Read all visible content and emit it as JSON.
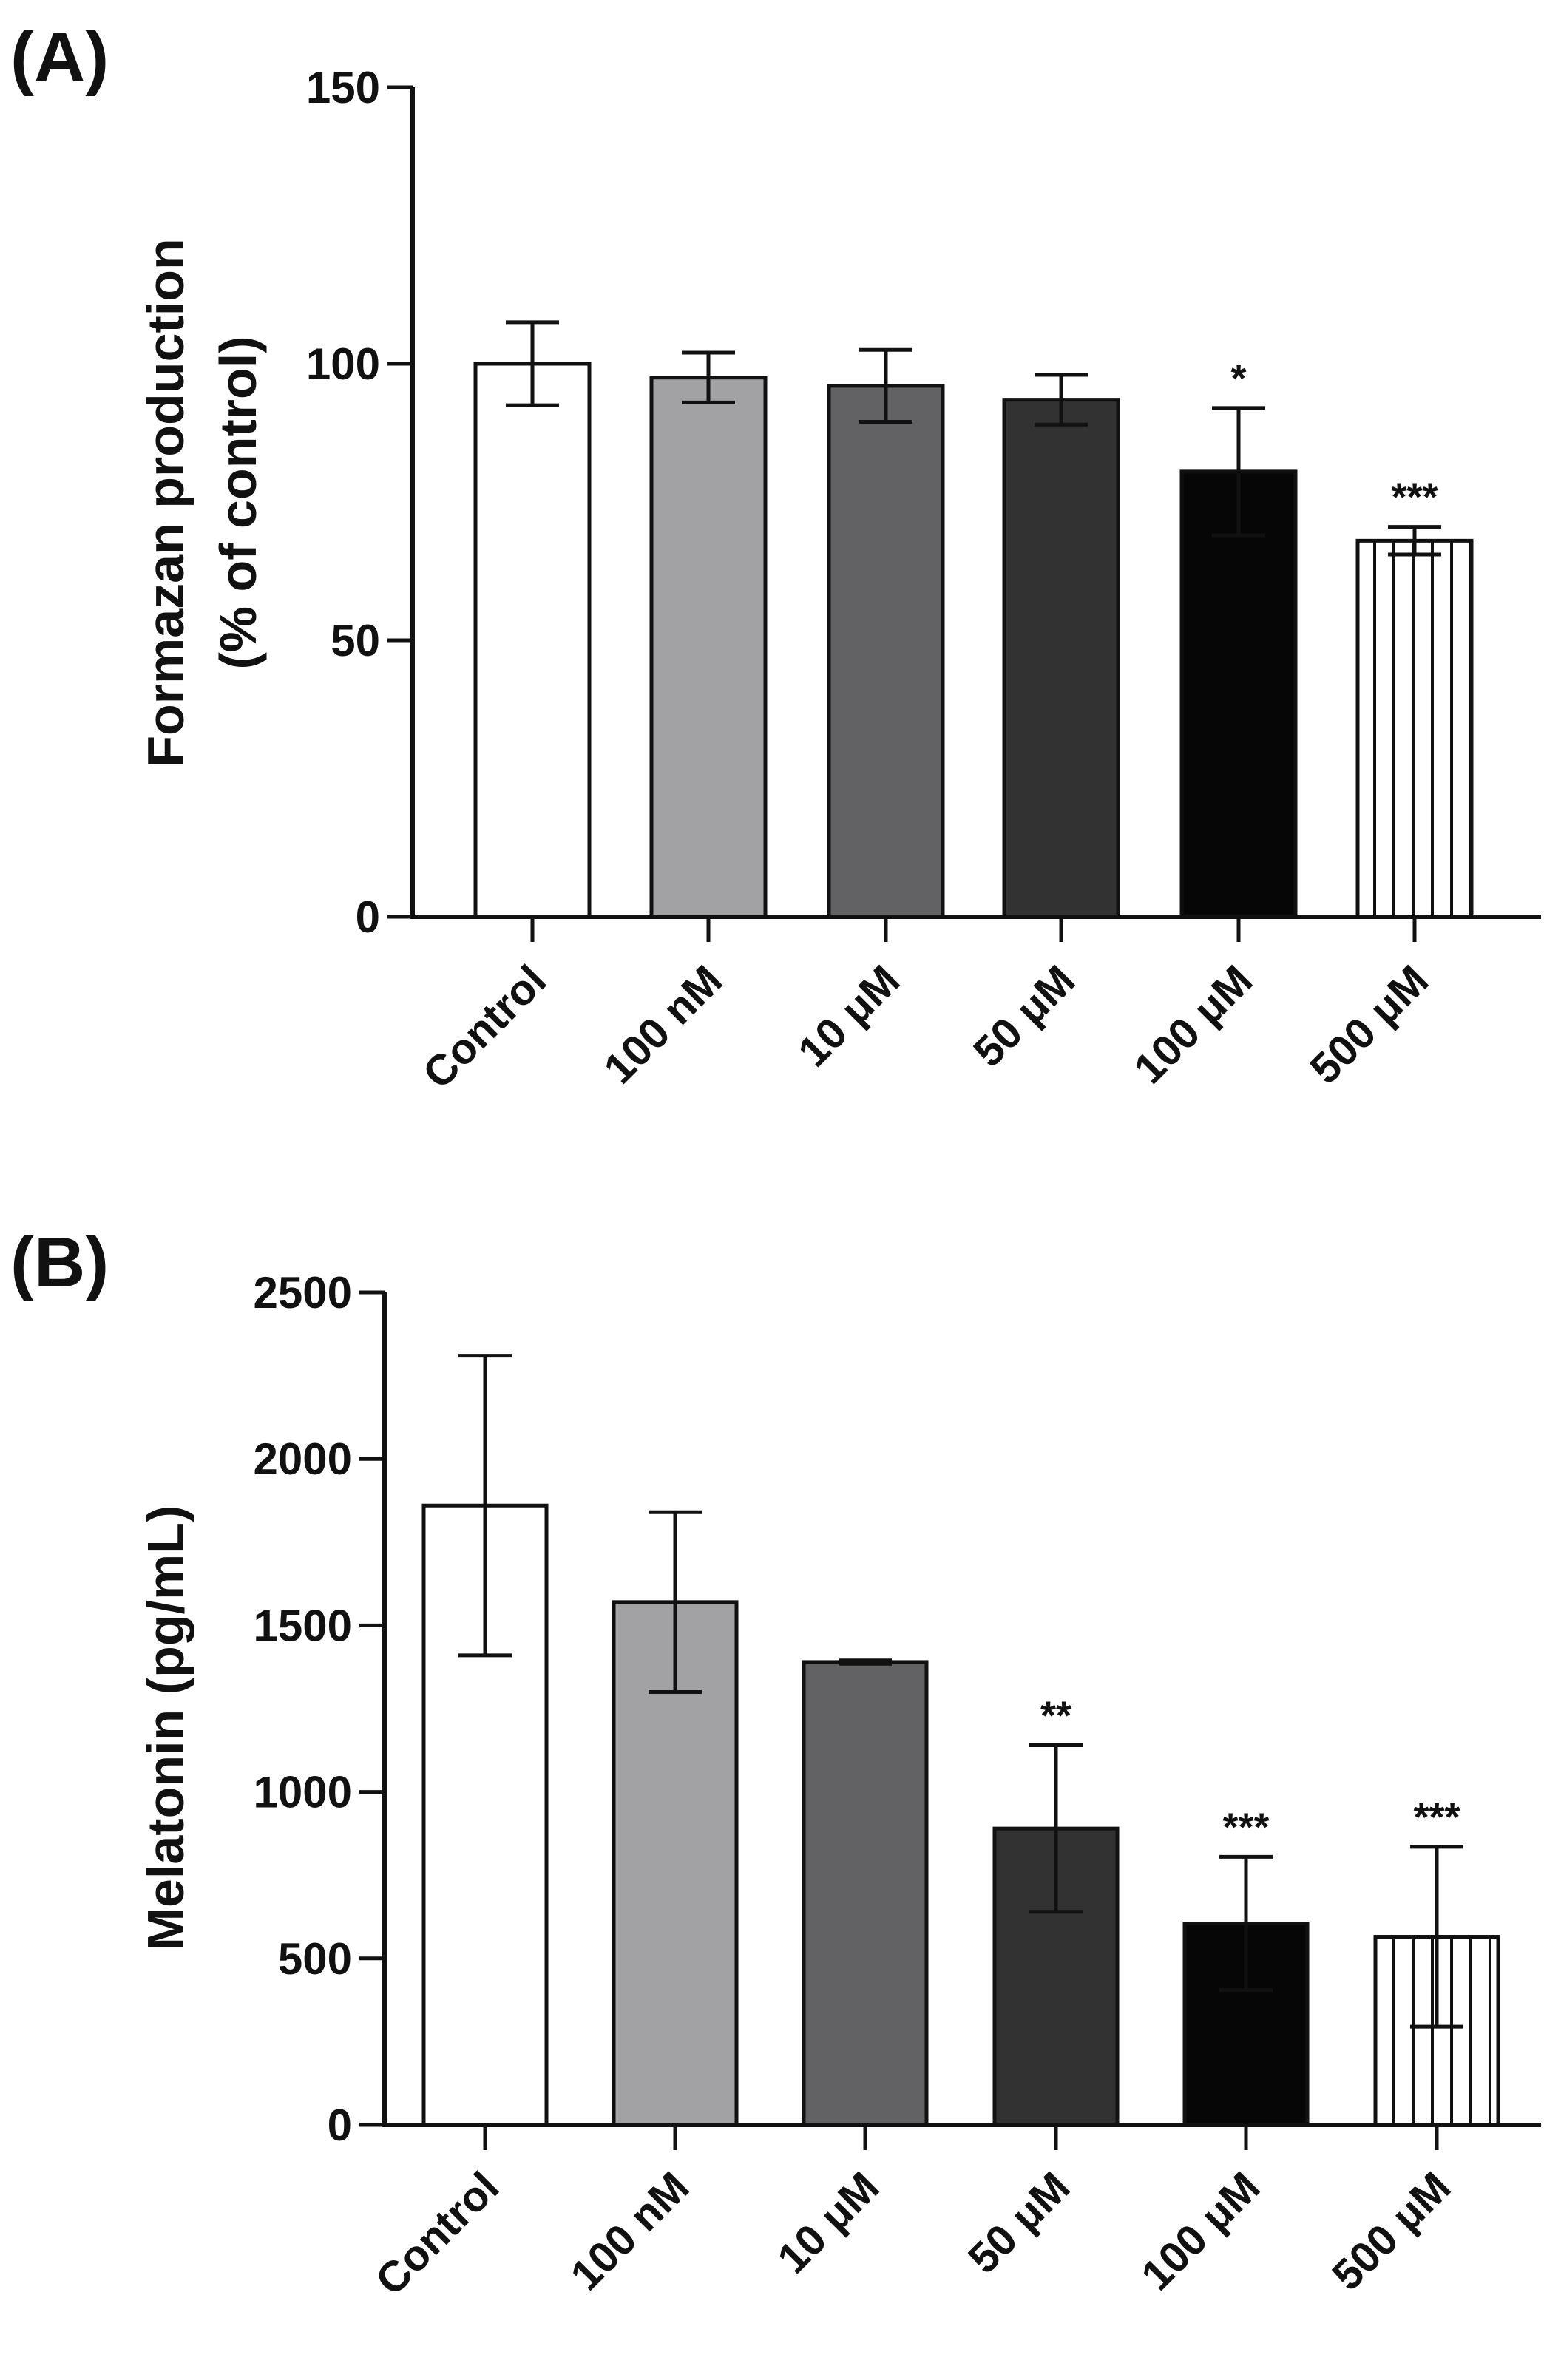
{
  "chart_data": [
    {
      "type": "bar",
      "panel_label": "(A)",
      "title": "",
      "xlabel": "",
      "ylabel_lines": [
        "Formazan production",
        "(% of control)"
      ],
      "ylim": [
        0,
        150
      ],
      "yticks": [
        0,
        50,
        100,
        150
      ],
      "categories": [
        "Control",
        "100 nM",
        "10 μM",
        "50 μM",
        "100 μM",
        "500 μM"
      ],
      "values": [
        100,
        97.5,
        96,
        93.5,
        80.5,
        68
      ],
      "errors": [
        7.5,
        4.5,
        6.5,
        4.5,
        11.5,
        2.5
      ],
      "significance": [
        "",
        "",
        "",
        "",
        "*",
        "***"
      ],
      "fills": [
        "#ffffff",
        "#a2a2a5",
        "#626264",
        "#323232",
        "#060606",
        "stripes"
      ]
    },
    {
      "type": "bar",
      "panel_label": "(B)",
      "title": "",
      "xlabel": "",
      "ylabel_lines": [
        "Melatonin (pg/mL)"
      ],
      "ylim": [
        0,
        2500
      ],
      "yticks": [
        0,
        500,
        1000,
        1500,
        2000,
        2500
      ],
      "categories": [
        "Control",
        "100 nM",
        "10 μM",
        "50 μM",
        "100 μM",
        "500 μM"
      ],
      "values": [
        1860,
        1570,
        1390,
        890,
        605,
        565
      ],
      "errors": [
        450,
        270,
        5,
        250,
        200,
        270
      ],
      "significance": [
        "",
        "",
        "",
        "**",
        "***",
        "***"
      ],
      "fills": [
        "#ffffff",
        "#a2a2a5",
        "#626264",
        "#323232",
        "#060606",
        "stripes"
      ]
    }
  ]
}
